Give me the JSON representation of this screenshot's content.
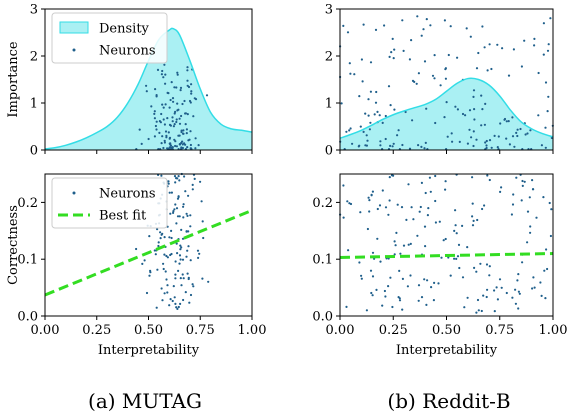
{
  "chart_data": [
    {
      "panel": "a-top",
      "type": "area",
      "title": "",
      "xlabel": "",
      "ylabel": "Importance",
      "xlim": [
        0,
        1
      ],
      "ylim": [
        0,
        3
      ],
      "yticks": [
        "0",
        "1",
        "2",
        "3"
      ],
      "legend": {
        "placement": "top-left",
        "entries": [
          "Density",
          "Neurons"
        ]
      },
      "density": {
        "x": [
          0,
          0.05,
          0.1,
          0.15,
          0.2,
          0.25,
          0.3,
          0.35,
          0.4,
          0.45,
          0.5,
          0.55,
          0.6,
          0.62,
          0.65,
          0.7,
          0.75,
          0.8,
          0.85,
          0.9,
          0.95,
          1.0
        ],
        "y": [
          0.02,
          0.05,
          0.1,
          0.17,
          0.26,
          0.37,
          0.5,
          0.7,
          1.0,
          1.4,
          1.9,
          2.35,
          2.55,
          2.58,
          2.45,
          1.9,
          1.3,
          0.8,
          0.55,
          0.45,
          0.42,
          0.38
        ]
      }
    },
    {
      "panel": "a-bottom",
      "type": "scatter",
      "title": "",
      "xlabel": "Interpretability",
      "ylabel": "Correctness",
      "xlim": [
        0,
        1
      ],
      "ylim": [
        0,
        0.25
      ],
      "xticks": [
        "0.00",
        "0.25",
        "0.50",
        "0.75",
        "1.00"
      ],
      "yticks": [
        "0.0",
        "0.1",
        "0.2"
      ],
      "legend": {
        "placement": "top-left",
        "entries": [
          "Neurons",
          "Best fit"
        ]
      },
      "best_fit": {
        "x": [
          0,
          1
        ],
        "y": [
          0.037,
          0.186
        ]
      }
    },
    {
      "panel": "b-top",
      "type": "area",
      "title": "",
      "xlabel": "",
      "ylabel": "",
      "xlim": [
        0,
        1
      ],
      "ylim": [
        0,
        3
      ],
      "yticks": [
        "0",
        "1",
        "2",
        "3"
      ],
      "density": {
        "x": [
          0,
          0.05,
          0.1,
          0.15,
          0.2,
          0.25,
          0.3,
          0.35,
          0.4,
          0.45,
          0.5,
          0.55,
          0.6,
          0.65,
          0.7,
          0.75,
          0.8,
          0.85,
          0.9,
          0.95,
          1.0
        ],
        "y": [
          0.25,
          0.33,
          0.42,
          0.53,
          0.65,
          0.75,
          0.83,
          0.9,
          0.97,
          1.08,
          1.25,
          1.42,
          1.52,
          1.5,
          1.38,
          1.15,
          0.85,
          0.6,
          0.45,
          0.35,
          0.28
        ]
      }
    },
    {
      "panel": "b-bottom",
      "type": "scatter",
      "title": "",
      "xlabel": "Interpretability",
      "ylabel": "",
      "xlim": [
        0,
        1
      ],
      "ylim": [
        0,
        0.25
      ],
      "xticks": [
        "0.00",
        "0.25",
        "0.50",
        "0.75",
        "1.00"
      ],
      "yticks": [
        "0.0",
        "0.1",
        "0.2"
      ],
      "best_fit": {
        "x": [
          0,
          1
        ],
        "y": [
          0.103,
          0.11
        ]
      }
    }
  ],
  "colors": {
    "density_fill": "#aaf0f3",
    "density_line": "#33dde6",
    "neuron": "#1f5f8b",
    "best_fit": "#33dd22"
  },
  "captions": [
    "(a) MUTAG",
    "(b) Reddit-B"
  ]
}
